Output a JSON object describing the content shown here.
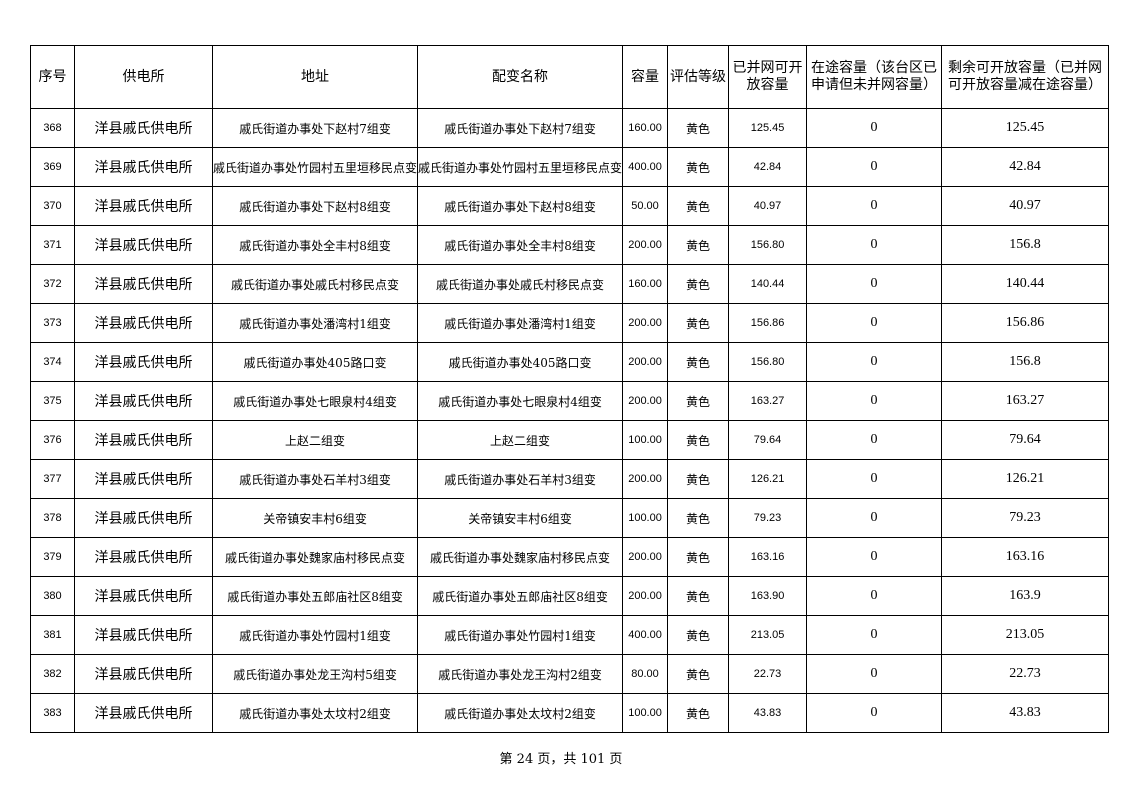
{
  "headers": [
    "序号",
    "供电所",
    "地址",
    "配变名称",
    "容量",
    "评估等级",
    "已并网可开放容量",
    "在途容量（该台区已申请但未并网容量）",
    "剩余可开放容量（已并网可开放容量减在途容量）"
  ],
  "rows": [
    [
      "368",
      "洋县戚氏供电所",
      "戚氏街道办事处下赵村7组变",
      "戚氏街道办事处下赵村7组变",
      "160.00",
      "黄色",
      "125.45",
      "0",
      "125.45"
    ],
    [
      "369",
      "洋县戚氏供电所",
      "戚氏街道办事处竹园村五里垣移民点变",
      "戚氏街道办事处竹园村五里垣移民点变",
      "400.00",
      "黄色",
      "42.84",
      "0",
      "42.84"
    ],
    [
      "370",
      "洋县戚氏供电所",
      "戚氏街道办事处下赵村8组变",
      "戚氏街道办事处下赵村8组变",
      "50.00",
      "黄色",
      "40.97",
      "0",
      "40.97"
    ],
    [
      "371",
      "洋县戚氏供电所",
      "戚氏街道办事处全丰村8组变",
      "戚氏街道办事处全丰村8组变",
      "200.00",
      "黄色",
      "156.80",
      "0",
      "156.8"
    ],
    [
      "372",
      "洋县戚氏供电所",
      "戚氏街道办事处戚氏村移民点变",
      "戚氏街道办事处戚氏村移民点变",
      "160.00",
      "黄色",
      "140.44",
      "0",
      "140.44"
    ],
    [
      "373",
      "洋县戚氏供电所",
      "戚氏街道办事处潘湾村1组变",
      "戚氏街道办事处潘湾村1组变",
      "200.00",
      "黄色",
      "156.86",
      "0",
      "156.86"
    ],
    [
      "374",
      "洋县戚氏供电所",
      "戚氏街道办事处405路口变",
      "戚氏街道办事处405路口变",
      "200.00",
      "黄色",
      "156.80",
      "0",
      "156.8"
    ],
    [
      "375",
      "洋县戚氏供电所",
      "戚氏街道办事处七眼泉村4组变",
      "戚氏街道办事处七眼泉村4组变",
      "200.00",
      "黄色",
      "163.27",
      "0",
      "163.27"
    ],
    [
      "376",
      "洋县戚氏供电所",
      "上赵二组变",
      "上赵二组变",
      "100.00",
      "黄色",
      "79.64",
      "0",
      "79.64"
    ],
    [
      "377",
      "洋县戚氏供电所",
      "戚氏街道办事处石羊村3组变",
      "戚氏街道办事处石羊村3组变",
      "200.00",
      "黄色",
      "126.21",
      "0",
      "126.21"
    ],
    [
      "378",
      "洋县戚氏供电所",
      "关帝镇安丰村6组变",
      "关帝镇安丰村6组变",
      "100.00",
      "黄色",
      "79.23",
      "0",
      "79.23"
    ],
    [
      "379",
      "洋县戚氏供电所",
      "戚氏街道办事处魏家庙村移民点变",
      "戚氏街道办事处魏家庙村移民点变",
      "200.00",
      "黄色",
      "163.16",
      "0",
      "163.16"
    ],
    [
      "380",
      "洋县戚氏供电所",
      "戚氏街道办事处五郎庙社区8组变",
      "戚氏街道办事处五郎庙社区8组变",
      "200.00",
      "黄色",
      "163.90",
      "0",
      "163.9"
    ],
    [
      "381",
      "洋县戚氏供电所",
      "戚氏街道办事处竹园村1组变",
      "戚氏街道办事处竹园村1组变",
      "400.00",
      "黄色",
      "213.05",
      "0",
      "213.05"
    ],
    [
      "382",
      "洋县戚氏供电所",
      "戚氏街道办事处龙王沟村5组变",
      "戚氏街道办事处龙王沟村2组变",
      "80.00",
      "黄色",
      "22.73",
      "0",
      "22.73"
    ],
    [
      "383",
      "洋县戚氏供电所",
      "戚氏街道办事处太坟村2组变",
      "戚氏街道办事处太坟村2组变",
      "100.00",
      "黄色",
      "43.83",
      "0",
      "43.83"
    ]
  ],
  "footer": "第 24 页，共 101 页"
}
